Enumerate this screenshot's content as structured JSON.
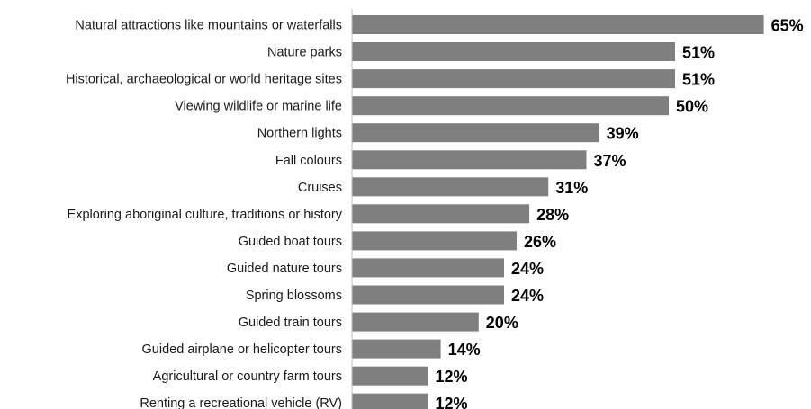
{
  "chart_data": {
    "type": "bar",
    "orientation": "horizontal",
    "categories": [
      "Natural attractions like mountains or waterfalls",
      "Nature parks",
      "Historical, archaeological or world heritage sites",
      "Viewing wildlife or marine life",
      "Northern lights",
      "Fall colours",
      "Cruises",
      "Exploring aboriginal culture, traditions or history",
      "Guided boat tours",
      "Guided nature tours",
      "Spring blossoms",
      "Guided train tours",
      "Guided airplane or helicopter tours",
      "Agricultural or country farm tours",
      "Renting a recreational vehicle (RV)"
    ],
    "values": [
      65,
      51,
      51,
      50,
      39,
      37,
      31,
      28,
      26,
      24,
      24,
      20,
      14,
      12,
      12
    ],
    "value_labels": [
      "65%",
      "51%",
      "51%",
      "50%",
      "39%",
      "37%",
      "31%",
      "28%",
      "26%",
      "24%",
      "24%",
      "20%",
      "14%",
      "12%",
      "12%"
    ],
    "unit": "%",
    "xlim": [
      0,
      70
    ],
    "grid": false,
    "legend": "none",
    "bar_color": "#7f7f7f",
    "axis_color": "#bfbfbf"
  }
}
